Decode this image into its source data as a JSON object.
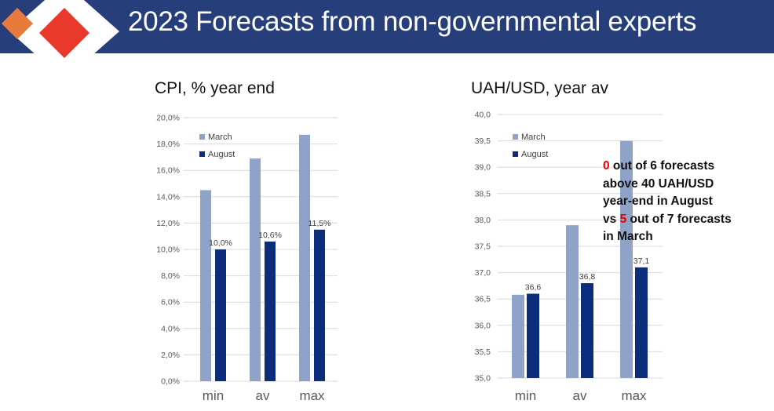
{
  "slide": {
    "title": "2023 Forecasts from non-governmental experts"
  },
  "colors": {
    "header_bg": "#263f7a",
    "march": "#8fa3c8",
    "august": "#0b2d7a",
    "logo_red": "#e8392b",
    "logo_orange": "#e87a3c",
    "highlight": "#e60000"
  },
  "annotation": {
    "n1": "0",
    "t1": " out of 6 forecasts",
    "t2": "above 40 UAH/USD",
    "t3": "year-end in August",
    "t4a": "vs ",
    "n2": "5",
    "t4b": " out of 7 forecasts",
    "t5": "in March"
  },
  "chart_data": [
    {
      "type": "bar",
      "title": "CPI, % year end",
      "categories": [
        "min",
        "av",
        "max"
      ],
      "series": [
        {
          "name": "March",
          "values": [
            14.5,
            16.9,
            18.7
          ]
        },
        {
          "name": "August",
          "values": [
            10.0,
            10.6,
            11.5
          ],
          "labels": [
            "10,0%",
            "10,6%",
            "11,5%"
          ]
        }
      ],
      "ylim": [
        0,
        20
      ],
      "yticks": [
        "0,0%",
        "2,0%",
        "4,0%",
        "6,0%",
        "8,0%",
        "10,0%",
        "12,0%",
        "14,0%",
        "16,0%",
        "18,0%",
        "20,0%"
      ],
      "grid": true,
      "legend": "top-left"
    },
    {
      "type": "bar",
      "title": "UAH/USD, year av",
      "categories": [
        "min",
        "av",
        "max"
      ],
      "series": [
        {
          "name": "March",
          "values": [
            36.58,
            37.9,
            39.5
          ]
        },
        {
          "name": "August",
          "values": [
            36.6,
            36.8,
            37.1
          ],
          "labels": [
            "36,6",
            "36,8",
            "37,1"
          ]
        }
      ],
      "ylim": [
        35,
        40
      ],
      "yticks": [
        "35,0",
        "35,5",
        "36,0",
        "36,5",
        "37,0",
        "37,5",
        "38,0",
        "38,5",
        "39,0",
        "39,5",
        "40,0"
      ],
      "grid": true,
      "legend": "top-left"
    }
  ]
}
